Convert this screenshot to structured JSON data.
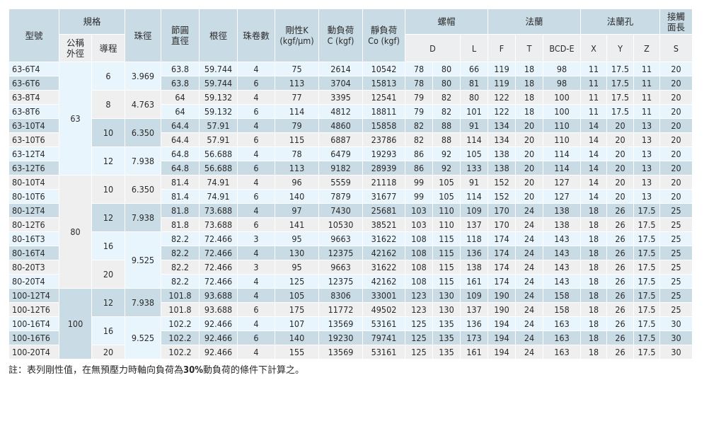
{
  "header": {
    "model": "型號",
    "spec": "規格",
    "nominal": "公稱\n外徑",
    "lead": "導程",
    "ball": "珠徑",
    "pcd": "節圓\n直徑",
    "root": "根徑",
    "turns": "珠卷數",
    "stiffness": "剛性K\n(kgf/μm)",
    "dynamic": "動負荷\nC (kgf)",
    "static": "靜負荷\nCo (kgf)",
    "nut": "螺帽",
    "flange": "法蘭",
    "flange_hole": "法蘭孔",
    "contact": "接觸\n面長",
    "D": "D",
    "L": "L",
    "F": "F",
    "T": "T",
    "BCD": "BCD-E",
    "X": "X",
    "Y": "Y",
    "Z": "Z",
    "S": "S"
  },
  "groups": [
    {
      "nominal": "63",
      "leads": [
        {
          "lead": "6",
          "ball": "3.969",
          "rows": [
            [
              "63-6T4",
              "63.8",
              "59.744",
              "4",
              "75",
              "2614",
              "10542",
              "78",
              "80",
              "66",
              "119",
              "18",
              "98",
              "11",
              "17.5",
              "11",
              "20"
            ],
            [
              "63-6T6",
              "63.8",
              "59.744",
              "6",
              "113",
              "3704",
              "15813",
              "78",
              "80",
              "81",
              "119",
              "18",
              "98",
              "11",
              "17.5",
              "11",
              "20"
            ]
          ]
        },
        {
          "lead": "8",
          "ball": "4.763",
          "rows": [
            [
              "63-8T4",
              "64",
              "59.132",
              "4",
              "77",
              "3395",
              "12541",
              "79",
              "82",
              "80",
              "122",
              "18",
              "100",
              "11",
              "17.5",
              "11",
              "20"
            ],
            [
              "63-8T6",
              "64",
              "59.132",
              "6",
              "114",
              "4812",
              "18811",
              "79",
              "82",
              "101",
              "122",
              "18",
              "100",
              "11",
              "17.5",
              "11",
              "20"
            ]
          ]
        },
        {
          "lead": "10",
          "ball": "6.350",
          "rows": [
            [
              "63-10T4",
              "64.4",
              "57.91",
              "4",
              "79",
              "4860",
              "15858",
              "82",
              "88",
              "91",
              "134",
              "20",
              "110",
              "14",
              "20",
              "13",
              "20"
            ],
            [
              "63-10T6",
              "64.4",
              "57.91",
              "6",
              "115",
              "6887",
              "23786",
              "82",
              "88",
              "114",
              "134",
              "20",
              "110",
              "14",
              "20",
              "13",
              "20"
            ]
          ]
        },
        {
          "lead": "12",
          "ball": "7.938",
          "rows": [
            [
              "63-12T4",
              "64.8",
              "56.688",
              "4",
              "78",
              "6479",
              "19293",
              "86",
              "92",
              "105",
              "138",
              "20",
              "114",
              "14",
              "20",
              "13",
              "20"
            ],
            [
              "63-12T6",
              "64.8",
              "56.688",
              "6",
              "113",
              "9182",
              "28939",
              "86",
              "92",
              "133",
              "138",
              "20",
              "114",
              "14",
              "20",
              "13",
              "20"
            ]
          ]
        }
      ]
    },
    {
      "nominal": "80",
      "leads": [
        {
          "lead": "10",
          "ball": "6.350",
          "rows": [
            [
              "80-10T4",
              "81.4",
              "74.91",
              "4",
              "96",
              "5559",
              "21118",
              "99",
              "105",
              "91",
              "152",
              "20",
              "127",
              "14",
              "20",
              "13",
              "20"
            ],
            [
              "80-10T6",
              "81.4",
              "74.91",
              "6",
              "140",
              "7879",
              "31677",
              "99",
              "105",
              "114",
              "152",
              "20",
              "127",
              "14",
              "20",
              "13",
              "20"
            ]
          ]
        },
        {
          "lead": "12",
          "ball": "7.938",
          "rows": [
            [
              "80-12T4",
              "81.8",
              "73.688",
              "4",
              "97",
              "7430",
              "25681",
              "103",
              "110",
              "109",
              "170",
              "24",
              "138",
              "18",
              "26",
              "17.5",
              "25"
            ],
            [
              "80-12T6",
              "81.8",
              "73.688",
              "6",
              "141",
              "10530",
              "38521",
              "103",
              "110",
              "137",
              "170",
              "24",
              "138",
              "18",
              "26",
              "17.5",
              "25"
            ]
          ]
        },
        {
          "lead": "16",
          "ball": "9.525",
          "ballspan": 4,
          "rows": [
            [
              "80-16T3",
              "82.2",
              "72.466",
              "3",
              "95",
              "9663",
              "31622",
              "108",
              "115",
              "118",
              "174",
              "24",
              "143",
              "18",
              "26",
              "17.5",
              "25"
            ],
            [
              "80-16T4",
              "82.2",
              "72.466",
              "4",
              "130",
              "12375",
              "42162",
              "108",
              "115",
              "136",
              "174",
              "24",
              "143",
              "18",
              "26",
              "17.5",
              "25"
            ]
          ]
        },
        {
          "lead": "20",
          "ball": null,
          "rows": [
            [
              "80-20T3",
              "82.2",
              "72.466",
              "3",
              "95",
              "9663",
              "31622",
              "108",
              "115",
              "138",
              "174",
              "24",
              "143",
              "18",
              "26",
              "17.5",
              "25"
            ],
            [
              "80-20T4",
              "82.2",
              "72.466",
              "4",
              "125",
              "12375",
              "42162",
              "108",
              "115",
              "161",
              "174",
              "24",
              "143",
              "18",
              "26",
              "17.5",
              "25"
            ]
          ]
        }
      ]
    },
    {
      "nominal": "100",
      "leads": [
        {
          "lead": "12",
          "ball": "7.938",
          "rows": [
            [
              "100-12T4",
              "101.8",
              "93.688",
              "4",
              "105",
              "8306",
              "33001",
              "123",
              "130",
              "109",
              "190",
              "24",
              "158",
              "18",
              "26",
              "17.5",
              "25"
            ],
            [
              "100-12T6",
              "101.8",
              "93.688",
              "6",
              "175",
              "11772",
              "49502",
              "123",
              "130",
              "137",
              "190",
              "24",
              "158",
              "18",
              "26",
              "17.5",
              "25"
            ]
          ]
        },
        {
          "lead": "16",
          "ball": "9.525",
          "ballspan": 3,
          "rows": [
            [
              "100-16T4",
              "102.2",
              "92.466",
              "4",
              "107",
              "13569",
              "53161",
              "125",
              "135",
              "136",
              "194",
              "24",
              "163",
              "18",
              "26",
              "17.5",
              "30"
            ],
            [
              "100-16T6",
              "102.2",
              "92.466",
              "6",
              "140",
              "19230",
              "79741",
              "125",
              "135",
              "173",
              "194",
              "24",
              "163",
              "18",
              "26",
              "17.5",
              "30"
            ]
          ]
        },
        {
          "lead": "20",
          "ball": null,
          "rows": [
            [
              "100-20T4",
              "102.2",
              "92.466",
              "4",
              "155",
              "13569",
              "53161",
              "125",
              "135",
              "161",
              "194",
              "24",
              "163",
              "18",
              "26",
              "17.5",
              "30"
            ]
          ]
        }
      ]
    }
  ],
  "note": {
    "prefix": "註：表列剛性值，在無預壓力時軸向負荷為",
    "bold": "30%",
    "suffix": "動負荷的條件下計算之。"
  },
  "colors": {
    "light": "#e9f5fc",
    "dark": "#c9dbe5",
    "gray": "#efefef"
  }
}
